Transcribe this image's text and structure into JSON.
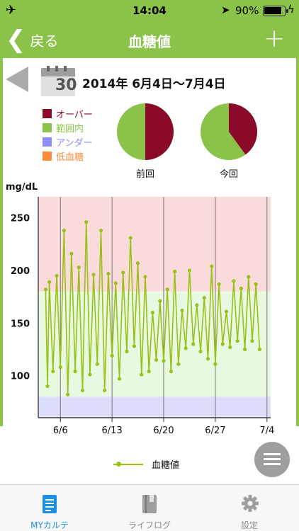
{
  "status_bar": {
    "time": "14:04",
    "battery_percent": "90%",
    "battery_level": 0.9,
    "airplane_glyph": "✈",
    "location_glyph": "➤",
    "charging_glyph": "ϟ"
  },
  "nav": {
    "back_chevron": "❮",
    "back_label": "戻る",
    "title": "血糖値",
    "add_label": "+"
  },
  "header": {
    "calendar_day": "30",
    "date_range": "2014年 6月4日〜7月4日"
  },
  "legend": [
    {
      "label": "オーバー",
      "color": "#8b0a2a"
    },
    {
      "label": "範囲内",
      "color": "#8bc34a"
    },
    {
      "label": "アンダー",
      "color": "#8c8cff"
    },
    {
      "label": "低血糖",
      "color": "#ff8c3a"
    }
  ],
  "pies": [
    {
      "label": "前回",
      "over": 0.5,
      "in_range": 0.5
    },
    {
      "label": "今回",
      "over": 0.4,
      "in_range": 0.6
    }
  ],
  "chart_data": {
    "type": "line",
    "ylabel": "mg/dL",
    "y_ticks": [
      100,
      150,
      200,
      250
    ],
    "x_ticks": [
      "6/6",
      "6/13",
      "6/20",
      "6/27",
      "7/4"
    ],
    "x_tick_days": [
      2,
      9,
      16,
      23,
      30
    ],
    "ylim": [
      60,
      270
    ],
    "xlim": [
      -1,
      30.5
    ],
    "bands": [
      {
        "name": "over",
        "from": 180,
        "to": 270,
        "color": "#fadbdb"
      },
      {
        "name": "in_range",
        "from": 80,
        "to": 180,
        "color": "#e9f8e1"
      },
      {
        "name": "under",
        "from": 60,
        "to": 80,
        "color": "#dcdcfb"
      }
    ],
    "series": [
      {
        "name": "血糖値",
        "color": "#9bc01a",
        "x": [
          0,
          0.25,
          0.5,
          1,
          1.5,
          2,
          2.5,
          3,
          3.5,
          4,
          4.5,
          5,
          5.5,
          6,
          6.5,
          7,
          7.5,
          8,
          8.5,
          9,
          9.5,
          10,
          10.5,
          11,
          11.5,
          12,
          12.5,
          13,
          13.5,
          14,
          14.5,
          15,
          15.5,
          16,
          16.5,
          17,
          17.5,
          18,
          18.5,
          19,
          19.5,
          20,
          20.5,
          21,
          21.5,
          22,
          22.5,
          23,
          23.5,
          24,
          24.5,
          25,
          25.5,
          26,
          26.5,
          27,
          27.5,
          28,
          28.5,
          29
        ],
        "y": [
          182,
          90,
          189,
          104,
          195,
          108,
          238,
          82,
          216,
          104,
          203,
          86,
          246,
          101,
          196,
          111,
          238,
          86,
          197,
          119,
          188,
          97,
          198,
          123,
          231,
          128,
          207,
          101,
          194,
          104,
          160,
          115,
          171,
          114,
          182,
          104,
          199,
          111,
          162,
          126,
          200,
          130,
          167,
          123,
          174,
          116,
          204,
          111,
          187,
          130,
          161,
          127,
          190,
          133,
          183,
          125,
          194,
          133,
          187,
          125
        ]
      }
    ]
  },
  "series_legend_label": "血糖値",
  "tabs": [
    {
      "label": "MYカルテ",
      "icon": "medical-chart-icon",
      "active": true
    },
    {
      "label": "ライフログ",
      "icon": "book-icon",
      "active": false
    },
    {
      "label": "設定",
      "icon": "gear-icon",
      "active": false
    }
  ]
}
